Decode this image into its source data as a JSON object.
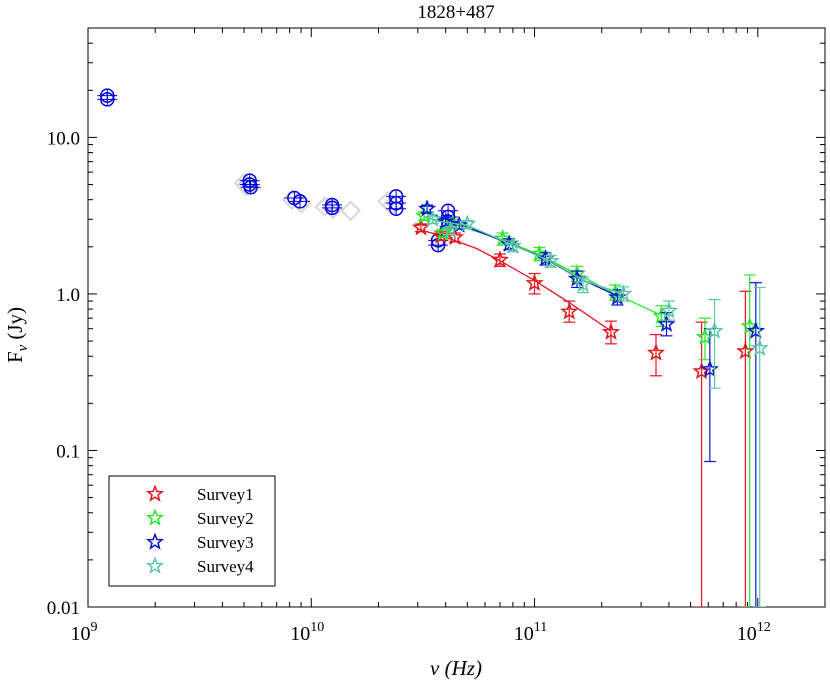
{
  "chart_data": {
    "type": "scatter",
    "title": "1828+487",
    "xlabel": "ν (Hz)",
    "ylabel_main": "F",
    "ylabel_sub": "ν",
    "ylabel_unit": "(Jy)",
    "xscale": "log",
    "yscale": "log",
    "xlim": [
      1000000000.0,
      2000000000000.0
    ],
    "ylim": [
      0.01,
      50
    ],
    "x_ticks": [
      {
        "value": 1000000000.0,
        "base": "10",
        "exp": "9"
      },
      {
        "value": 10000000000.0,
        "base": "10",
        "exp": "10"
      },
      {
        "value": 100000000000.0,
        "base": "10",
        "exp": "11"
      },
      {
        "value": 1000000000000.0,
        "base": "10",
        "exp": "12"
      }
    ],
    "y_ticks": [
      {
        "value": 0.01,
        "label": "0.01"
      },
      {
        "value": 0.1,
        "label": "0.1"
      },
      {
        "value": 1,
        "label": "1.0"
      },
      {
        "value": 10,
        "label": "10.0"
      }
    ],
    "legend_position": "bottom-left",
    "archival_circles": {
      "color": "#0000dd",
      "points": [
        {
          "x": 1220000000.0,
          "y": 18.5
        },
        {
          "x": 1220000000.0,
          "y": 17.5
        },
        {
          "x": 5300000000.0,
          "y": 5.3
        },
        {
          "x": 5300000000.0,
          "y": 5.0
        },
        {
          "x": 5350000000.0,
          "y": 4.8
        },
        {
          "x": 8400000000.0,
          "y": 4.1
        },
        {
          "x": 8900000000.0,
          "y": 3.9
        },
        {
          "x": 12400000000.0,
          "y": 3.7
        },
        {
          "x": 12400000000.0,
          "y": 3.55
        },
        {
          "x": 24000000000.0,
          "y": 4.2
        },
        {
          "x": 24000000000.0,
          "y": 3.8
        },
        {
          "x": 24000000000.0,
          "y": 3.5
        },
        {
          "x": 37000000000.0,
          "y": 2.2
        },
        {
          "x": 37000000000.0,
          "y": 2.05
        },
        {
          "x": 41000000000.0,
          "y": 3.4
        },
        {
          "x": 41000000000.0,
          "y": 3.1
        },
        {
          "x": 41000000000.0,
          "y": 2.9
        }
      ]
    },
    "archival_diamonds": {
      "color": "#d8d8d8",
      "points": [
        {
          "x": 5000000000.0,
          "y": 5.1
        },
        {
          "x": 5100000000.0,
          "y": 4.9
        },
        {
          "x": 8200000000.0,
          "y": 4.0
        },
        {
          "x": 9000000000.0,
          "y": 3.8
        },
        {
          "x": 11500000000.0,
          "y": 3.6
        },
        {
          "x": 12500000000.0,
          "y": 3.5
        },
        {
          "x": 15000000000.0,
          "y": 3.4
        },
        {
          "x": 22000000000.0,
          "y": 3.9
        },
        {
          "x": 23000000000.0,
          "y": 3.7
        }
      ]
    },
    "series": [
      {
        "name": "Survey1",
        "color": "#e8141c",
        "points": [
          {
            "x": 31000000000.0,
            "y": 2.65,
            "lo": 2.5,
            "hi": 2.8
          },
          {
            "x": 38000000000.0,
            "y": 2.35,
            "lo": 2.2,
            "hi": 2.5
          },
          {
            "x": 44000000000.0,
            "y": 2.3,
            "lo": 2.15,
            "hi": 2.45
          },
          {
            "x": 70000000000.0,
            "y": 1.65,
            "lo": 1.5,
            "hi": 1.8
          },
          {
            "x": 100000000000.0,
            "y": 1.17,
            "lo": 1.0,
            "hi": 1.35
          },
          {
            "x": 143000000000.0,
            "y": 0.77,
            "lo": 0.66,
            "hi": 0.9
          },
          {
            "x": 220000000000.0,
            "y": 0.57,
            "lo": 0.48,
            "hi": 0.67
          },
          {
            "x": 350000000000.0,
            "y": 0.42,
            "lo": 0.3,
            "hi": 0.55
          },
          {
            "x": 560000000000.0,
            "y": 0.32,
            "lo": 0.01,
            "hi": 0.66
          },
          {
            "x": 880000000000.0,
            "y": 0.43,
            "lo": 0.01,
            "hi": 1.04
          }
        ],
        "fit": [
          {
            "x": 30000000000.0,
            "y": 2.6
          },
          {
            "x": 40000000000.0,
            "y": 2.3
          },
          {
            "x": 55000000000.0,
            "y": 1.95
          },
          {
            "x": 70000000000.0,
            "y": 1.63
          },
          {
            "x": 100000000000.0,
            "y": 1.22
          },
          {
            "x": 143000000000.0,
            "y": 0.88
          },
          {
            "x": 220000000000.0,
            "y": 0.58
          }
        ]
      },
      {
        "name": "Survey2",
        "color": "#2ae82a",
        "points": [
          {
            "x": 32000000000.0,
            "y": 3.15,
            "lo": 2.95,
            "hi": 3.35
          },
          {
            "x": 39000000000.0,
            "y": 2.45,
            "lo": 2.3,
            "hi": 2.6
          },
          {
            "x": 43000000000.0,
            "y": 2.8,
            "lo": 2.6,
            "hi": 3.0
          },
          {
            "x": 72000000000.0,
            "y": 2.25,
            "lo": 2.05,
            "hi": 2.45
          },
          {
            "x": 105000000000.0,
            "y": 1.8,
            "lo": 1.63,
            "hi": 1.98
          },
          {
            "x": 155000000000.0,
            "y": 1.35,
            "lo": 1.2,
            "hi": 1.5
          },
          {
            "x": 230000000000.0,
            "y": 1.02,
            "lo": 0.91,
            "hi": 1.14
          },
          {
            "x": 370000000000.0,
            "y": 0.72,
            "lo": 0.62,
            "hi": 0.84
          },
          {
            "x": 580000000000.0,
            "y": 0.53,
            "lo": 0.38,
            "hi": 0.7
          },
          {
            "x": 920000000000.0,
            "y": 0.62,
            "lo": 0.01,
            "hi": 1.32
          }
        ],
        "fit": [
          {
            "x": 32000000000.0,
            "y": 3.1
          },
          {
            "x": 45000000000.0,
            "y": 2.75
          },
          {
            "x": 72000000000.0,
            "y": 2.22
          },
          {
            "x": 105000000000.0,
            "y": 1.78
          },
          {
            "x": 155000000000.0,
            "y": 1.34
          },
          {
            "x": 230000000000.0,
            "y": 1.0
          },
          {
            "x": 370000000000.0,
            "y": 0.73
          }
        ]
      },
      {
        "name": "Survey3",
        "color": "#0a14d2",
        "points": [
          {
            "x": 33000000000.0,
            "y": 3.5,
            "lo": 3.3,
            "hi": 3.7
          },
          {
            "x": 40000000000.0,
            "y": 2.9,
            "lo": 2.7,
            "hi": 3.1
          },
          {
            "x": 46000000000.0,
            "y": 2.75,
            "lo": 2.6,
            "hi": 2.9
          },
          {
            "x": 77000000000.0,
            "y": 2.08,
            "lo": 1.92,
            "hi": 2.25
          },
          {
            "x": 112000000000.0,
            "y": 1.68,
            "lo": 1.53,
            "hi": 1.83
          },
          {
            "x": 155000000000.0,
            "y": 1.25,
            "lo": 1.1,
            "hi": 1.4
          },
          {
            "x": 235000000000.0,
            "y": 0.95,
            "lo": 0.85,
            "hi": 1.06
          },
          {
            "x": 390000000000.0,
            "y": 0.64,
            "lo": 0.54,
            "hi": 0.76
          },
          {
            "x": 610000000000.0,
            "y": 0.33,
            "lo": 0.085,
            "hi": 0.6
          },
          {
            "x": 980000000000.0,
            "y": 0.58,
            "lo": 0.01,
            "hi": 1.18
          }
        ],
        "fit": [
          {
            "x": 33000000000.0,
            "y": 3.3
          },
          {
            "x": 46000000000.0,
            "y": 2.8
          },
          {
            "x": 77000000000.0,
            "y": 2.1
          },
          {
            "x": 112000000000.0,
            "y": 1.68
          },
          {
            "x": 155000000000.0,
            "y": 1.28
          },
          {
            "x": 235000000000.0,
            "y": 0.97
          }
        ]
      },
      {
        "name": "Survey4",
        "color": "#5cc6a6",
        "points": [
          {
            "x": 35000000000.0,
            "y": 3.0,
            "lo": 2.82,
            "hi": 3.2
          },
          {
            "x": 42000000000.0,
            "y": 2.55,
            "lo": 2.4,
            "hi": 2.7
          },
          {
            "x": 50000000000.0,
            "y": 2.8,
            "lo": 2.65,
            "hi": 2.95
          },
          {
            "x": 80000000000.0,
            "y": 2.02,
            "lo": 1.86,
            "hi": 2.18
          },
          {
            "x": 118000000000.0,
            "y": 1.62,
            "lo": 1.48,
            "hi": 1.76
          },
          {
            "x": 165000000000.0,
            "y": 1.15,
            "lo": 1.02,
            "hi": 1.28
          },
          {
            "x": 250000000000.0,
            "y": 1.0,
            "lo": 0.9,
            "hi": 1.11
          },
          {
            "x": 400000000000.0,
            "y": 0.78,
            "lo": 0.68,
            "hi": 0.9
          },
          {
            "x": 640000000000.0,
            "y": 0.58,
            "lo": 0.25,
            "hi": 0.92
          },
          {
            "x": 1020000000000.0,
            "y": 0.45,
            "lo": 0.01,
            "hi": 1.1
          }
        ],
        "fit": [
          {
            "x": 35000000000.0,
            "y": 2.95
          },
          {
            "x": 50000000000.0,
            "y": 2.75
          },
          {
            "x": 80000000000.0,
            "y": 2.05
          },
          {
            "x": 118000000000.0,
            "y": 1.62
          },
          {
            "x": 165000000000.0,
            "y": 1.22
          },
          {
            "x": 250000000000.0,
            "y": 1.0
          }
        ]
      }
    ]
  }
}
